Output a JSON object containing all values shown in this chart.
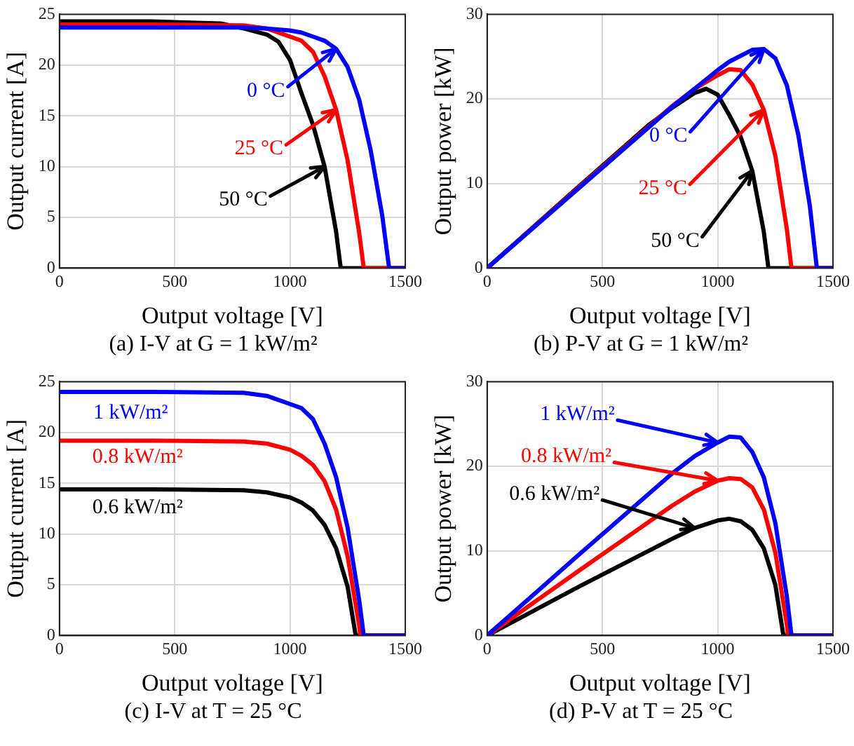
{
  "chart_data": [
    {
      "type": "line",
      "title": "(a) I-V at G = 1 kW/m²",
      "xlabel": "Output voltage [V]",
      "ylabel": "Output current [A]",
      "xlim": [
        0,
        1500
      ],
      "xticks": [
        0,
        500,
        1000,
        1500
      ],
      "ylim": [
        0,
        25
      ],
      "yticks": [
        0,
        5,
        10,
        15,
        20,
        25
      ],
      "grid": true,
      "legend": false,
      "marker": "none",
      "series": [
        {
          "name": "0 °C",
          "color": "#0000ff",
          "x": [
            0,
            400,
            800,
            900,
            1000,
            1050,
            1100,
            1150,
            1200,
            1250,
            1300,
            1350,
            1400,
            1430,
            1500
          ],
          "values": [
            23.7,
            23.7,
            23.7,
            23.6,
            23.4,
            23.2,
            22.8,
            22.4,
            21.6,
            19.8,
            16.6,
            11.6,
            5.2,
            0,
            0
          ]
        },
        {
          "name": "25 °C",
          "color": "#ff0000",
          "x": [
            0,
            400,
            800,
            900,
            1000,
            1050,
            1100,
            1150,
            1200,
            1250,
            1300,
            1320,
            1500
          ],
          "values": [
            24.0,
            24.0,
            23.9,
            23.6,
            22.8,
            22.4,
            21.3,
            18.9,
            15.6,
            10.6,
            3.5,
            0,
            0
          ]
        },
        {
          "name": "50 °C",
          "color": "#000000",
          "x": [
            0,
            400,
            700,
            800,
            900,
            950,
            1000,
            1050,
            1100,
            1150,
            1200,
            1220,
            1500
          ],
          "values": [
            24.3,
            24.3,
            24.1,
            23.6,
            23.0,
            22.3,
            20.5,
            17.2,
            14.1,
            10.0,
            3.6,
            0,
            0
          ]
        }
      ]
    },
    {
      "type": "line",
      "title": "(b) P-V at G = 1 kW/m²",
      "xlabel": "Output voltage [V]",
      "ylabel": "Output power [kW]",
      "xlim": [
        0,
        1500
      ],
      "xticks": [
        0,
        500,
        1000,
        1500
      ],
      "ylim": [
        0,
        30
      ],
      "yticks": [
        0,
        10,
        20,
        30
      ],
      "grid": true,
      "legend": false,
      "marker": "none",
      "series": [
        {
          "name": "0 °C",
          "color": "#0000ff",
          "x": [
            0,
            400,
            800,
            900,
            1000,
            1050,
            1100,
            1150,
            1200,
            1250,
            1300,
            1350,
            1400,
            1430,
            1500
          ],
          "values": [
            0,
            9.5,
            19.0,
            21.2,
            23.4,
            24.4,
            25.1,
            25.8,
            25.9,
            24.8,
            21.6,
            15.7,
            7.3,
            0,
            0
          ]
        },
        {
          "name": "25 °C",
          "color": "#ff0000",
          "x": [
            0,
            400,
            800,
            900,
            1000,
            1050,
            1100,
            1150,
            1200,
            1250,
            1300,
            1320,
            1500
          ],
          "values": [
            0,
            9.6,
            19.1,
            21.2,
            22.8,
            23.5,
            23.4,
            21.7,
            18.7,
            13.3,
            4.6,
            0,
            0
          ]
        },
        {
          "name": "50 °C",
          "color": "#000000",
          "x": [
            0,
            400,
            700,
            800,
            900,
            950,
            1000,
            1050,
            1100,
            1150,
            1200,
            1220,
            1500
          ],
          "values": [
            0,
            9.7,
            16.9,
            18.9,
            20.7,
            21.2,
            20.5,
            18.1,
            15.5,
            11.5,
            4.3,
            0,
            0
          ]
        }
      ]
    },
    {
      "type": "line",
      "title": "(c) I-V at T = 25 °C",
      "xlabel": "Output voltage [V]",
      "ylabel": "Output current [A]",
      "xlim": [
        0,
        1500
      ],
      "xticks": [
        0,
        500,
        1000,
        1500
      ],
      "ylim": [
        0,
        25
      ],
      "yticks": [
        0,
        5,
        10,
        15,
        20,
        25
      ],
      "grid": true,
      "legend": false,
      "marker": "none",
      "series": [
        {
          "name": "1 kW/m²",
          "color": "#0000ff",
          "x": [
            0,
            400,
            800,
            900,
            1000,
            1050,
            1100,
            1150,
            1200,
            1250,
            1300,
            1320,
            1500
          ],
          "values": [
            24.0,
            24.0,
            23.9,
            23.6,
            22.8,
            22.4,
            21.3,
            18.9,
            15.6,
            10.6,
            3.5,
            0,
            0
          ]
        },
        {
          "name": "0.8 kW/m²",
          "color": "#ff0000",
          "x": [
            0,
            400,
            800,
            900,
            1000,
            1050,
            1100,
            1150,
            1200,
            1250,
            1300,
            1305,
            1500
          ],
          "values": [
            19.2,
            19.2,
            19.1,
            18.9,
            18.3,
            17.7,
            16.8,
            15.2,
            12.4,
            7.8,
            1.0,
            0,
            0
          ]
        },
        {
          "name": "0.6 kW/m²",
          "color": "#000000",
          "x": [
            0,
            400,
            800,
            900,
            1000,
            1050,
            1100,
            1150,
            1200,
            1250,
            1285,
            1500
          ],
          "values": [
            14.4,
            14.4,
            14.3,
            14.1,
            13.6,
            13.1,
            12.3,
            10.9,
            8.6,
            4.8,
            0,
            0
          ]
        }
      ]
    },
    {
      "type": "line",
      "title": "(d) P-V at T = 25 °C",
      "xlabel": "Output voltage [V]",
      "ylabel": "Output power [kW]",
      "xlim": [
        0,
        1500
      ],
      "xticks": [
        0,
        500,
        1000,
        1500
      ],
      "ylim": [
        0,
        30
      ],
      "yticks": [
        0,
        10,
        20,
        30
      ],
      "grid": true,
      "legend": false,
      "marker": "none",
      "series": [
        {
          "name": "1 kW/m²",
          "color": "#0000ff",
          "x": [
            0,
            400,
            800,
            900,
            1000,
            1050,
            1100,
            1150,
            1200,
            1250,
            1300,
            1320,
            1500
          ],
          "values": [
            0,
            9.6,
            19.1,
            21.2,
            22.8,
            23.5,
            23.4,
            21.7,
            18.7,
            13.3,
            4.6,
            0,
            0
          ]
        },
        {
          "name": "0.8 kW/m²",
          "color": "#ff0000",
          "x": [
            0,
            400,
            800,
            900,
            1000,
            1050,
            1100,
            1150,
            1200,
            1250,
            1300,
            1305,
            1500
          ],
          "values": [
            0,
            7.7,
            15.3,
            17.0,
            18.3,
            18.6,
            18.5,
            17.5,
            14.9,
            9.8,
            1.3,
            0,
            0
          ]
        },
        {
          "name": "0.6 kW/m²",
          "color": "#000000",
          "x": [
            0,
            400,
            800,
            900,
            1000,
            1050,
            1100,
            1150,
            1200,
            1250,
            1285,
            1500
          ],
          "values": [
            0,
            5.8,
            11.4,
            12.7,
            13.6,
            13.8,
            13.5,
            12.5,
            10.3,
            6.0,
            0,
            0
          ]
        }
      ]
    }
  ]
}
